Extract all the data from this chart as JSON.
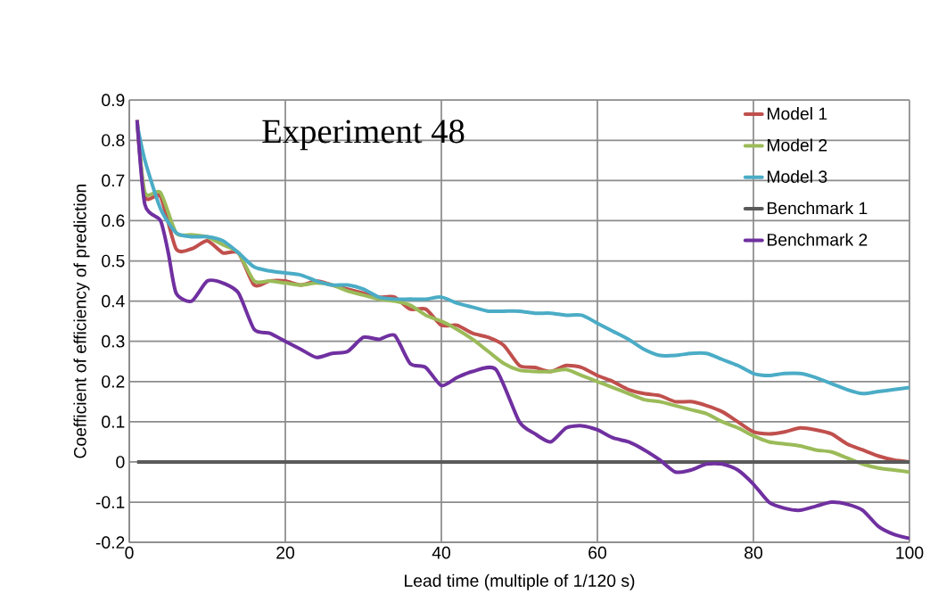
{
  "chart_data": {
    "type": "line",
    "title": "Experiment 48",
    "xlabel": "Lead time (multiple of 1/120 s)",
    "ylabel": "Coefficient of efficiency of prediction",
    "xlim": [
      0,
      100
    ],
    "xticks": [
      0,
      20,
      40,
      60,
      80,
      100
    ],
    "ylim": [
      -0.2,
      0.9
    ],
    "yticks": [
      -0.2,
      -0.1,
      0,
      0.1,
      0.2,
      0.3,
      0.4,
      0.5,
      0.6,
      0.7,
      0.8,
      0.9
    ],
    "grid": true,
    "legend": "top right",
    "series": [
      {
        "name": "Model 1",
        "color": "#c0504d",
        "x": [
          1,
          2,
          4,
          6,
          8,
          10,
          12,
          14,
          16,
          18,
          20,
          22,
          24,
          26,
          28,
          30,
          32,
          34,
          36,
          38,
          40,
          42,
          44,
          46,
          48,
          50,
          52,
          54,
          56,
          58,
          60,
          62,
          64,
          66,
          68,
          70,
          72,
          74,
          76,
          78,
          80,
          82,
          84,
          86,
          88,
          90,
          92,
          94,
          96,
          98,
          100
        ],
        "values": [
          0.85,
          0.66,
          0.66,
          0.53,
          0.53,
          0.55,
          0.52,
          0.52,
          0.44,
          0.45,
          0.45,
          0.44,
          0.45,
          0.44,
          0.43,
          0.42,
          0.41,
          0.41,
          0.38,
          0.38,
          0.34,
          0.34,
          0.32,
          0.31,
          0.29,
          0.24,
          0.235,
          0.225,
          0.24,
          0.235,
          0.215,
          0.2,
          0.18,
          0.17,
          0.165,
          0.15,
          0.15,
          0.14,
          0.125,
          0.1,
          0.075,
          0.07,
          0.075,
          0.085,
          0.08,
          0.07,
          0.045,
          0.03,
          0.015,
          0.005,
          0.0
        ]
      },
      {
        "name": "Model 2",
        "color": "#9bbb59",
        "x": [
          1,
          2,
          4,
          6,
          8,
          10,
          12,
          14,
          16,
          18,
          20,
          22,
          24,
          26,
          28,
          30,
          32,
          34,
          36,
          38,
          40,
          42,
          44,
          46,
          48,
          50,
          52,
          54,
          56,
          58,
          60,
          62,
          64,
          66,
          68,
          70,
          72,
          74,
          76,
          78,
          80,
          82,
          84,
          86,
          88,
          90,
          92,
          94,
          96,
          98,
          100
        ],
        "values": [
          0.85,
          0.67,
          0.67,
          0.57,
          0.565,
          0.56,
          0.54,
          0.52,
          0.45,
          0.45,
          0.445,
          0.44,
          0.445,
          0.44,
          0.425,
          0.415,
          0.405,
          0.4,
          0.39,
          0.365,
          0.35,
          0.33,
          0.305,
          0.275,
          0.245,
          0.228,
          0.225,
          0.225,
          0.23,
          0.215,
          0.2,
          0.185,
          0.17,
          0.155,
          0.15,
          0.14,
          0.13,
          0.12,
          0.1,
          0.085,
          0.065,
          0.05,
          0.045,
          0.04,
          0.03,
          0.025,
          0.01,
          -0.005,
          -0.015,
          -0.02,
          -0.025
        ]
      },
      {
        "name": "Model 3",
        "color": "#4bacc6",
        "x": [
          1,
          2,
          4,
          6,
          8,
          10,
          12,
          14,
          16,
          18,
          20,
          22,
          24,
          26,
          28,
          30,
          32,
          34,
          36,
          38,
          40,
          42,
          44,
          46,
          48,
          50,
          52,
          54,
          56,
          58,
          60,
          62,
          64,
          66,
          68,
          70,
          72,
          74,
          76,
          78,
          80,
          82,
          84,
          86,
          88,
          90,
          92,
          94,
          96,
          98,
          100
        ],
        "values": [
          0.84,
          0.75,
          0.63,
          0.57,
          0.56,
          0.56,
          0.55,
          0.52,
          0.485,
          0.475,
          0.47,
          0.465,
          0.45,
          0.44,
          0.44,
          0.43,
          0.41,
          0.405,
          0.405,
          0.405,
          0.41,
          0.395,
          0.385,
          0.375,
          0.375,
          0.375,
          0.37,
          0.37,
          0.365,
          0.365,
          0.345,
          0.325,
          0.305,
          0.28,
          0.265,
          0.265,
          0.27,
          0.27,
          0.255,
          0.24,
          0.22,
          0.215,
          0.22,
          0.22,
          0.21,
          0.195,
          0.18,
          0.17,
          0.175,
          0.18,
          0.185
        ]
      },
      {
        "name": "Benchmark 1",
        "color": "#5a5a5a",
        "x": [
          1,
          100
        ],
        "values": [
          0,
          0
        ]
      },
      {
        "name": "Benchmark 2",
        "color": "#7030a0",
        "x": [
          1,
          2,
          4,
          5,
          6,
          8,
          10,
          12,
          14,
          16,
          18,
          20,
          22,
          24,
          26,
          28,
          30,
          32,
          34,
          36,
          38,
          40,
          42,
          44,
          47,
          50,
          52,
          54,
          56,
          58,
          60,
          62,
          64,
          66,
          68,
          70,
          72,
          74,
          76,
          78,
          80,
          82,
          84,
          86,
          88,
          90,
          92,
          94,
          96,
          98,
          100
        ],
        "values": [
          0.85,
          0.64,
          0.6,
          0.52,
          0.42,
          0.4,
          0.45,
          0.445,
          0.42,
          0.33,
          0.32,
          0.3,
          0.28,
          0.26,
          0.27,
          0.275,
          0.31,
          0.305,
          0.315,
          0.245,
          0.235,
          0.19,
          0.21,
          0.225,
          0.23,
          0.1,
          0.07,
          0.05,
          0.085,
          0.09,
          0.08,
          0.06,
          0.05,
          0.03,
          0.005,
          -0.025,
          -0.02,
          -0.005,
          -0.005,
          -0.02,
          -0.055,
          -0.1,
          -0.115,
          -0.12,
          -0.11,
          -0.1,
          -0.105,
          -0.12,
          -0.16,
          -0.18,
          -0.19
        ]
      }
    ]
  }
}
